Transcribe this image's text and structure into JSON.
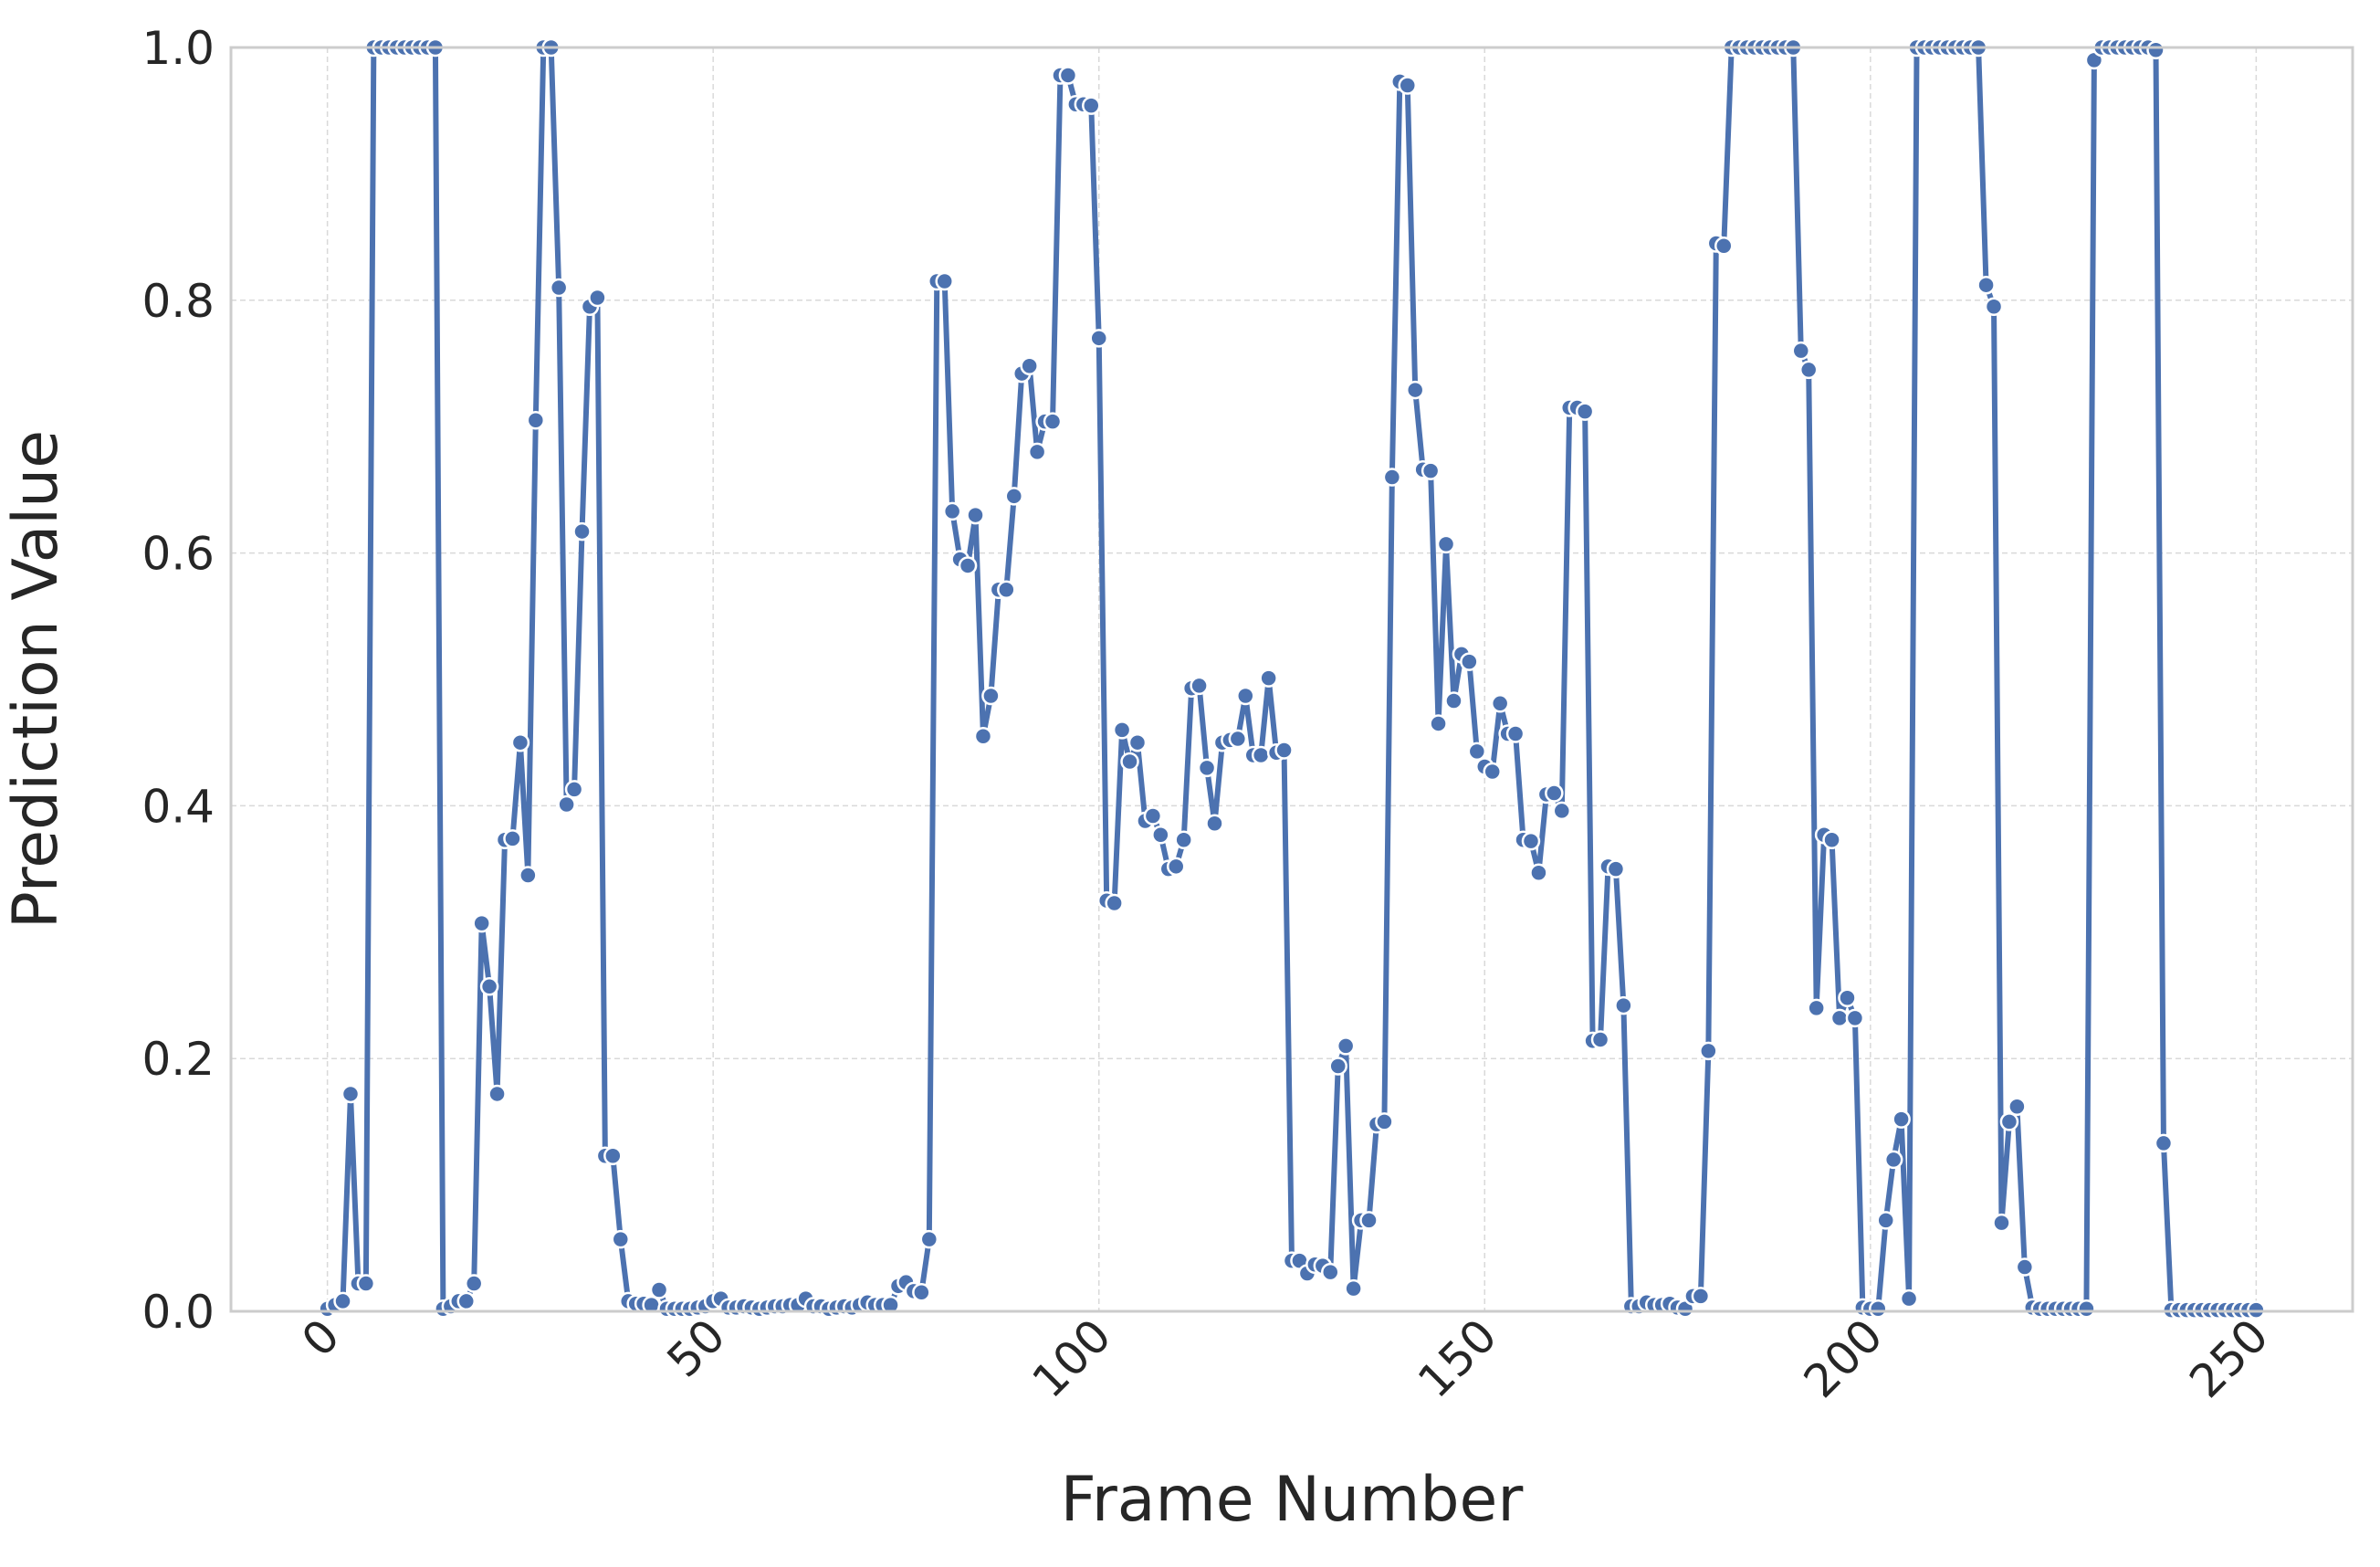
{
  "chart_data": {
    "type": "line",
    "x_label": "Frame Number",
    "y_label": "Prediction Value",
    "x": [
      0,
      1,
      2,
      3,
      4,
      5,
      6,
      7,
      8,
      9,
      10,
      11,
      12,
      13,
      14,
      15,
      16,
      17,
      18,
      19,
      20,
      21,
      22,
      23,
      24,
      25,
      26,
      27,
      28,
      29,
      30,
      31,
      32,
      33,
      34,
      35,
      36,
      37,
      38,
      39,
      40,
      41,
      42,
      43,
      44,
      45,
      46,
      47,
      48,
      49,
      50,
      51,
      52,
      53,
      54,
      55,
      56,
      57,
      58,
      59,
      60,
      61,
      62,
      63,
      64,
      65,
      66,
      67,
      68,
      69,
      70,
      71,
      72,
      73,
      74,
      75,
      76,
      77,
      78,
      79,
      80,
      81,
      82,
      83,
      84,
      85,
      86,
      87,
      88,
      89,
      90,
      91,
      92,
      93,
      94,
      95,
      96,
      97,
      98,
      99,
      100,
      101,
      102,
      103,
      104,
      105,
      106,
      107,
      108,
      109,
      110,
      111,
      112,
      113,
      114,
      115,
      116,
      117,
      118,
      119,
      120,
      121,
      122,
      123,
      124,
      125,
      126,
      127,
      128,
      129,
      130,
      131,
      132,
      133,
      134,
      135,
      136,
      137,
      138,
      139,
      140,
      141,
      142,
      143,
      144,
      145,
      146,
      147,
      148,
      149,
      150,
      151,
      152,
      153,
      154,
      155,
      156,
      157,
      158,
      159,
      160,
      161,
      162,
      163,
      164,
      165,
      166,
      167,
      168,
      169,
      170,
      171,
      172,
      173,
      174,
      175,
      176,
      177,
      178,
      179,
      180,
      181,
      182,
      183,
      184,
      185,
      186,
      187,
      188,
      189,
      190,
      191,
      192,
      193,
      194,
      195,
      196,
      197,
      198,
      199,
      200,
      201,
      202,
      203,
      204,
      205,
      206,
      207,
      208,
      209,
      210,
      211,
      212,
      213,
      214,
      215,
      216,
      217,
      218,
      219,
      220,
      221,
      222,
      223,
      224,
      225,
      226,
      227,
      228,
      229,
      230,
      231,
      232,
      233,
      234,
      235,
      236,
      237,
      238,
      239,
      240,
      241,
      242,
      243,
      244,
      245,
      246,
      247,
      248,
      249,
      250
    ],
    "series": [
      {
        "name": "Prediction",
        "color": "#4c72b0",
        "values": [
          0.002,
          0.005,
          0.008,
          0.172,
          0.022,
          0.022,
          1.0,
          1.0,
          1.0,
          1.0,
          1.0,
          1.0,
          1.0,
          1.0,
          1.0,
          0.002,
          0.004,
          0.008,
          0.008,
          0.022,
          0.307,
          0.257,
          0.172,
          0.373,
          0.374,
          0.45,
          0.345,
          0.705,
          1.0,
          1.0,
          0.81,
          0.401,
          0.413,
          0.617,
          0.795,
          0.802,
          0.123,
          0.123,
          0.057,
          0.008,
          0.006,
          0.006,
          0.005,
          0.017,
          0.002,
          0.002,
          0.002,
          0.002,
          0.003,
          0.004,
          0.008,
          0.01,
          0.003,
          0.003,
          0.004,
          0.003,
          0.002,
          0.003,
          0.004,
          0.004,
          0.005,
          0.005,
          0.01,
          0.004,
          0.004,
          0.002,
          0.003,
          0.004,
          0.003,
          0.005,
          0.007,
          0.005,
          0.005,
          0.005,
          0.02,
          0.023,
          0.016,
          0.015,
          0.057,
          0.815,
          0.815,
          0.633,
          0.595,
          0.59,
          0.63,
          0.455,
          0.487,
          0.571,
          0.571,
          0.645,
          0.742,
          0.748,
          0.68,
          0.704,
          0.704,
          0.978,
          0.978,
          0.955,
          0.955,
          0.954,
          0.77,
          0.325,
          0.323,
          0.46,
          0.435,
          0.45,
          0.388,
          0.392,
          0.377,
          0.35,
          0.352,
          0.373,
          0.493,
          0.495,
          0.43,
          0.386,
          0.45,
          0.452,
          0.453,
          0.487,
          0.44,
          0.44,
          0.501,
          0.442,
          0.444,
          0.04,
          0.04,
          0.03,
          0.037,
          0.036,
          0.031,
          0.194,
          0.21,
          0.018,
          0.072,
          0.072,
          0.148,
          0.15,
          0.66,
          0.973,
          0.97,
          0.729,
          0.666,
          0.665,
          0.465,
          0.607,
          0.483,
          0.52,
          0.514,
          0.443,
          0.431,
          0.427,
          0.481,
          0.457,
          0.457,
          0.373,
          0.372,
          0.347,
          0.409,
          0.41,
          0.396,
          0.715,
          0.715,
          0.712,
          0.214,
          0.215,
          0.352,
          0.35,
          0.242,
          0.004,
          0.004,
          0.007,
          0.005,
          0.005,
          0.006,
          0.003,
          0.002,
          0.012,
          0.012,
          0.206,
          0.845,
          0.843,
          1.0,
          1.0,
          1.0,
          1.0,
          1.0,
          1.0,
          1.0,
          1.0,
          1.0,
          0.76,
          0.745,
          0.24,
          0.377,
          0.373,
          0.232,
          0.248,
          0.232,
          0.003,
          0.002,
          0.002,
          0.072,
          0.12,
          0.152,
          0.01,
          1.0,
          1.0,
          1.0,
          1.0,
          1.0,
          1.0,
          1.0,
          1.0,
          1.0,
          0.812,
          0.795,
          0.07,
          0.15,
          0.162,
          0.035,
          0.003,
          0.002,
          0.002,
          0.002,
          0.002,
          0.002,
          0.002,
          0.002,
          0.99,
          1.0,
          1.0,
          1.0,
          1.0,
          1.0,
          1.0,
          1.0,
          0.998,
          0.133,
          0.001,
          0.001,
          0.001,
          0.001,
          0.001,
          0.001,
          0.001,
          0.001,
          0.001,
          0.001,
          0.001,
          0.001
        ]
      }
    ],
    "xlim": [
      -12.5,
      262.5
    ],
    "xticks": [
      0,
      50,
      100,
      150,
      200,
      250
    ],
    "ylim": [
      0,
      1
    ],
    "yticks": [
      {
        "value": 0,
        "label": "0.0"
      },
      0.2,
      0.4,
      0.6,
      0.8,
      {
        "value": 1,
        "label": "1.0"
      }
    ],
    "grid": true
  }
}
